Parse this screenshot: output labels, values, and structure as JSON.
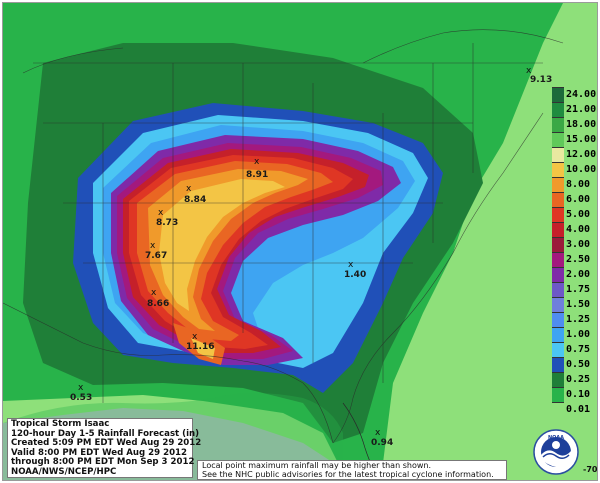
{
  "map": {
    "title_lines": [
      "Tropical Storm Isaac",
      "120-hour Day 1-5 Rainfall Forecast (in)",
      "Created 5:09 PM EDT Wed Aug 29 2012",
      "Valid 8:00 PM EDT Wed Aug 29 2012",
      "through 8:00 PM EDT Mon Sep 3 2012",
      "NOAA/NWS/NCEP/HPC"
    ],
    "disclaimer_lines": [
      "Local point maximum rainfall may be higher than shown.",
      "See the NHC public advisories for the latest tropical cyclone information."
    ],
    "logo_text": "NOAA",
    "corner_label": "-70",
    "point_maxima": [
      "9.13",
      "8.91",
      "8.84",
      "8.73",
      "7.67",
      "8.66",
      "11.16",
      "1.40",
      "0.53",
      "0.94"
    ],
    "legend": {
      "labels": [
        "24.00",
        "21.00",
        "18.00",
        "15.00",
        "12.00",
        "10.00",
        "8.00",
        "6.00",
        "5.00",
        "4.00",
        "3.00",
        "2.50",
        "2.00",
        "1.75",
        "1.50",
        "1.25",
        "1.00",
        "0.75",
        "0.50",
        "0.25",
        "0.10",
        "0.01"
      ],
      "colors": [
        "#1c6a3a",
        "#1f8c3f",
        "#3aa845",
        "#60c95a",
        "#e9e8a0",
        "#f3c545",
        "#f09a2b",
        "#e96623",
        "#df3624",
        "#c5202a",
        "#9b1b3a",
        "#a3197e",
        "#7f2aa8",
        "#6d58c7",
        "#6f7fdc",
        "#4f8df0",
        "#3ea4f2",
        "#4bc6f3",
        "#2050b8",
        "#1f7f38",
        "#28b34a",
        "#8ee07a"
      ]
    }
  }
}
